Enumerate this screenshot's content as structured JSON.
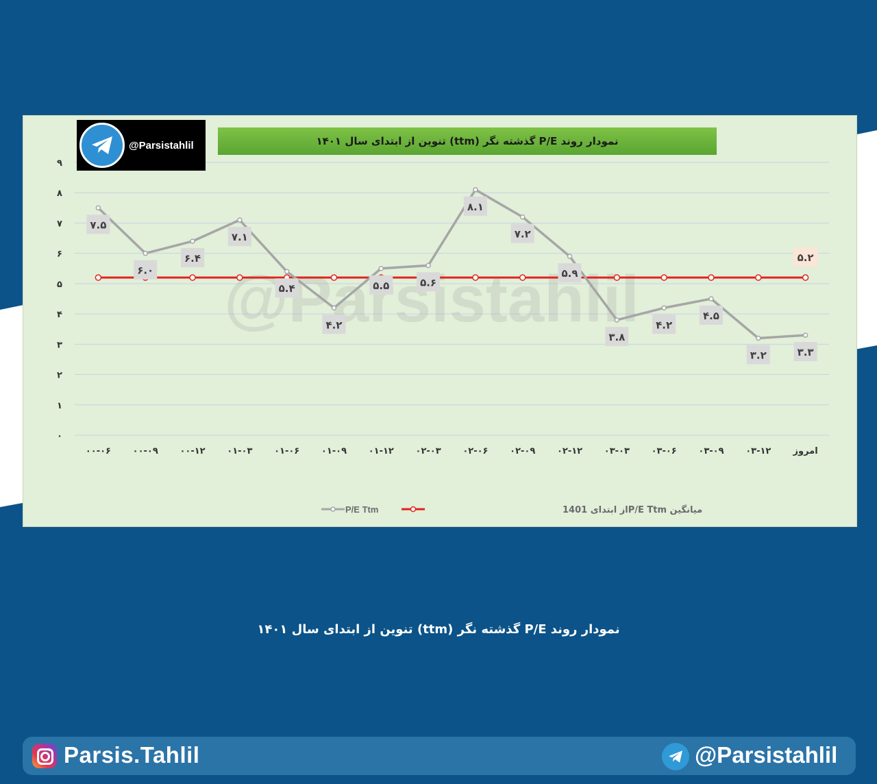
{
  "colors": {
    "page_bg": "#0b5388",
    "card_bg": "#e2efd9",
    "pe_line": "#a6a6a6",
    "avg_line": "#e0241b",
    "title_banner": "#6db33f",
    "label_box": "#d9d9d9",
    "avg_label_box": "#fbe5d6"
  },
  "logo": {
    "handle": "@Parsistahlil",
    "icon": "telegram-icon"
  },
  "watermark": "@Parsistahlil",
  "caption": "نمودار روند P/E گذشته نگر (ttm)  تنوین از ابتدای سال ۱۴۰۱",
  "footer": {
    "instagram_handle": "Parsis.Tahlil",
    "instagram_icon": "instagram-icon",
    "telegram_handle": "@Parsistahlil",
    "telegram_icon": "telegram-icon"
  },
  "chart_data": {
    "type": "line",
    "title": "نمودار روند P/E گذشته نگر (ttm)  تنوین از ابتدای سال ۱۴۰۱",
    "categories": [
      "۰۰-۰۶",
      "۰۰-۰۹",
      "۰۰-۱۲",
      "۰۱-۰۳",
      "۰۱-۰۶",
      "۰۱-۰۹",
      "۰۱-۱۲",
      "۰۲-۰۳",
      "۰۲-۰۶",
      "۰۲-۰۹",
      "۰۲-۱۲",
      "۰۳-۰۳",
      "۰۳-۰۶",
      "۰۳-۰۹",
      "۰۳-۱۲",
      "امروز"
    ],
    "y_ticks": [
      "۰",
      "۱",
      "۲",
      "۳",
      "۴",
      "۵",
      "۶",
      "۷",
      "۸",
      "۹"
    ],
    "ylim": [
      0,
      9
    ],
    "grid": true,
    "legend_position": "bottom",
    "series": [
      {
        "name": "P/E Ttm",
        "color": "#a6a6a6",
        "values": [
          7.5,
          6.0,
          6.4,
          7.1,
          5.4,
          4.2,
          5.5,
          5.6,
          8.1,
          7.2,
          5.9,
          3.8,
          4.2,
          4.5,
          3.2,
          3.3
        ],
        "labels": [
          "۷.۵",
          "۶.۰",
          "۶.۴",
          "۷.۱",
          "۵.۴",
          "۴.۲",
          "۵.۵",
          "۵.۶",
          "۸.۱",
          "۷.۲",
          "۵.۹",
          "۳.۸",
          "۴.۲",
          "۴.۵",
          "۳.۲",
          "۳.۳"
        ]
      },
      {
        "name": "میانگین  P/E Ttmاز ابتدای 1401",
        "color": "#e0241b",
        "values": [
          5.2,
          5.2,
          5.2,
          5.2,
          5.2,
          5.2,
          5.2,
          5.2,
          5.2,
          5.2,
          5.2,
          5.2,
          5.2,
          5.2,
          5.2,
          5.2
        ],
        "end_label": "۵.۲"
      }
    ]
  }
}
